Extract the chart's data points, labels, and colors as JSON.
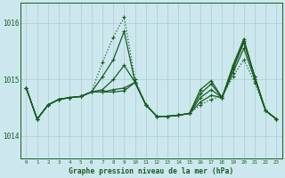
{
  "bg_color": "#cce8ee",
  "grid_color": "#aacccc",
  "line_color": "#1a5c20",
  "title": "Graphe pression niveau de la mer (hPa)",
  "xlim": [
    -0.5,
    23.5
  ],
  "ylim": [
    1013.6,
    1016.35
  ],
  "yticks": [
    1014,
    1015,
    1016
  ],
  "xticks": [
    0,
    1,
    2,
    3,
    4,
    5,
    6,
    7,
    8,
    9,
    10,
    11,
    12,
    13,
    14,
    15,
    16,
    17,
    18,
    19,
    20,
    21,
    22,
    23
  ],
  "series": [
    {
      "style": "dotted",
      "data": [
        1014.85,
        1014.3,
        1014.55,
        1014.65,
        1014.68,
        1014.7,
        1014.78,
        1015.3,
        1015.75,
        1016.1,
        1015.0,
        1014.55,
        1014.35,
        1014.35,
        1014.37,
        1014.4,
        1014.55,
        1014.65,
        1014.7,
        1015.05,
        1015.35,
        1014.95,
        1014.45,
        1014.3
      ]
    },
    {
      "style": "solid",
      "data": [
        1014.85,
        1014.3,
        1014.55,
        1014.65,
        1014.68,
        1014.7,
        1014.78,
        1015.05,
        1015.35,
        1015.85,
        1014.95,
        1014.55,
        1014.35,
        1014.35,
        1014.37,
        1014.4,
        1014.6,
        1014.72,
        1014.68,
        1015.12,
        1015.55,
        1015.0,
        1014.45,
        1014.3
      ]
    },
    {
      "style": "solid",
      "data": [
        1014.85,
        1014.3,
        1014.55,
        1014.65,
        1014.68,
        1014.7,
        1014.78,
        1014.82,
        1015.0,
        1015.25,
        1014.95,
        1014.55,
        1014.35,
        1014.35,
        1014.37,
        1014.4,
        1014.68,
        1014.82,
        1014.68,
        1015.18,
        1015.65,
        1015.05,
        1014.45,
        1014.3
      ]
    },
    {
      "style": "solid",
      "data": [
        1014.85,
        1014.3,
        1014.55,
        1014.65,
        1014.68,
        1014.7,
        1014.78,
        1014.78,
        1014.82,
        1014.85,
        1014.95,
        1014.55,
        1014.35,
        1014.35,
        1014.37,
        1014.4,
        1014.75,
        1014.92,
        1014.68,
        1015.22,
        1015.68,
        1015.05,
        1014.45,
        1014.3
      ]
    },
    {
      "style": "solid",
      "data": [
        1014.85,
        1014.3,
        1014.55,
        1014.65,
        1014.68,
        1014.7,
        1014.78,
        1014.78,
        1014.78,
        1014.8,
        1014.95,
        1014.55,
        1014.35,
        1014.35,
        1014.37,
        1014.4,
        1014.82,
        1014.98,
        1014.68,
        1015.25,
        1015.72,
        1015.05,
        1014.45,
        1014.3
      ]
    }
  ]
}
